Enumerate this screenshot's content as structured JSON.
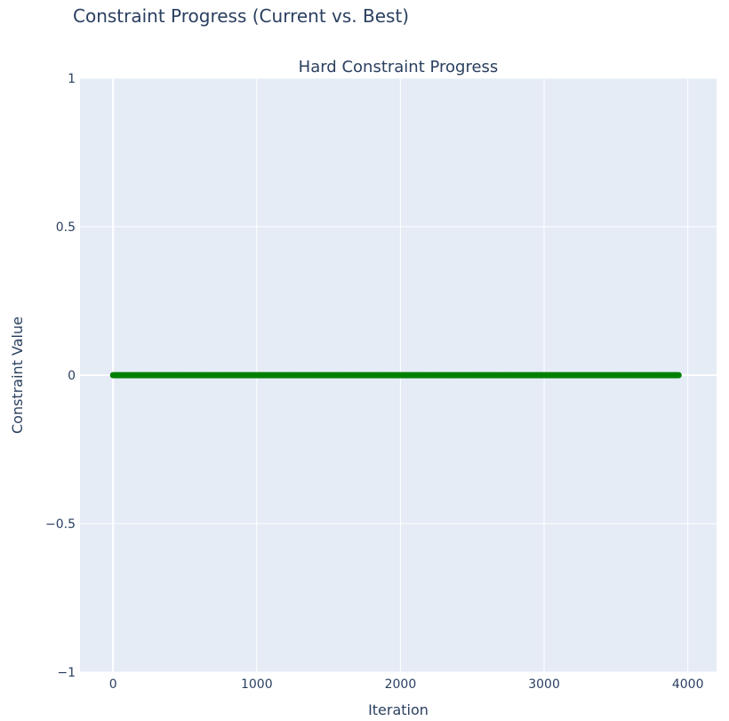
{
  "title": "Constraint Progress (Current vs. Best)",
  "chart_data": {
    "type": "scatter",
    "title": "Hard Constraint Progress",
    "xlabel": "Iteration",
    "ylabel": "Constraint Value",
    "xlim": [
      -230,
      4200
    ],
    "ylim": [
      -1,
      1
    ],
    "x_ticks": [
      "0",
      "1000",
      "2000",
      "3000",
      "4000"
    ],
    "y_ticks": [
      "1",
      "0.5",
      "0",
      "−0.5",
      "−1"
    ],
    "grid": true,
    "marker_color": "#008000",
    "background_color": "#e5ecf6",
    "series": [
      {
        "x_start": 0,
        "x_end": 3940,
        "y": 0,
        "point_count": 3941
      }
    ]
  }
}
